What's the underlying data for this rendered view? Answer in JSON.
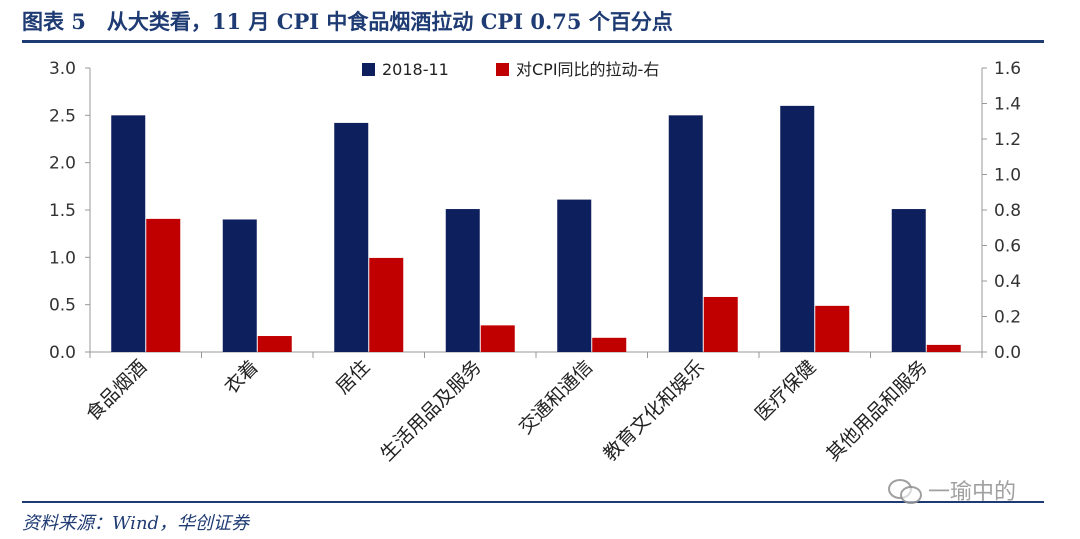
{
  "header": {
    "title": "图表 5　从大类看，11 月 CPI 中食品烟酒拉动 CPI 0.75 个百分点"
  },
  "footer": {
    "source": "资料来源：Wind，华创证券",
    "watermark": "一瑜中的",
    "watermark_icon": "wechat-icon"
  },
  "colors": {
    "series_1": "#0d1f5c",
    "series_2": "#c00000",
    "rule": "#1f3b73"
  },
  "chart_data": {
    "type": "bar",
    "categories": [
      "食品烟酒",
      "衣着",
      "居住",
      "生活用品及服务",
      "交通和通信",
      "教育文化和娱乐",
      "医疗保健",
      "其他用品和服务"
    ],
    "series": [
      {
        "name": "2018-11",
        "axis": "left",
        "values": [
          2.5,
          1.4,
          2.42,
          1.51,
          1.61,
          2.5,
          2.6,
          1.51
        ]
      },
      {
        "name": "对CPI同比的拉动-右",
        "axis": "right",
        "values": [
          0.75,
          0.09,
          0.53,
          0.15,
          0.08,
          0.31,
          0.26,
          0.04
        ]
      }
    ],
    "ylim_left": [
      0,
      3
    ],
    "yticks_left": [
      "0.0",
      "0.5",
      "1.0",
      "1.5",
      "2.0",
      "2.5",
      "3.0"
    ],
    "ylim_right": [
      0,
      1.6
    ],
    "yticks_right": [
      "0.0",
      "0.2",
      "0.4",
      "0.6",
      "0.8",
      "1.0",
      "1.2",
      "1.4",
      "1.6"
    ],
    "grid": false,
    "legend_position": "top-center"
  }
}
